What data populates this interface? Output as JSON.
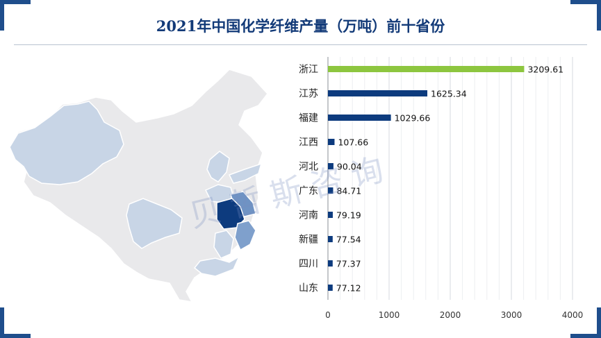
{
  "title": "2021年中国化学纤维产量（万吨）前十省份",
  "watermark": "贝哲斯咨询",
  "colors": {
    "accent_green": "#8dc63f",
    "bar_blue": "#0d3b7e",
    "title_blue": "#123a78"
  },
  "chart_data": {
    "type": "bar",
    "orientation": "horizontal",
    "title": "2021年中国化学纤维产量（万吨）前十省份",
    "xlabel": "",
    "ylabel": "",
    "categories": [
      "浙江",
      "江苏",
      "福建",
      "江西",
      "河北",
      "广东",
      "河南",
      "新疆",
      "四川",
      "山东"
    ],
    "values": [
      3209.61,
      1625.34,
      1029.66,
      107.66,
      90.04,
      84.71,
      79.19,
      77.54,
      77.37,
      77.12
    ],
    "value_labels": [
      "3209.61",
      "1625.34",
      "1029.66",
      "107.66",
      "90.04",
      "84.71",
      "79.19",
      "77.54",
      "77.37",
      "77.12"
    ],
    "xlim": [
      0,
      4000
    ],
    "xticks": [
      "0",
      "1000",
      "2000",
      "3000",
      "4000"
    ],
    "grid": true,
    "highlight_category": "浙江"
  }
}
